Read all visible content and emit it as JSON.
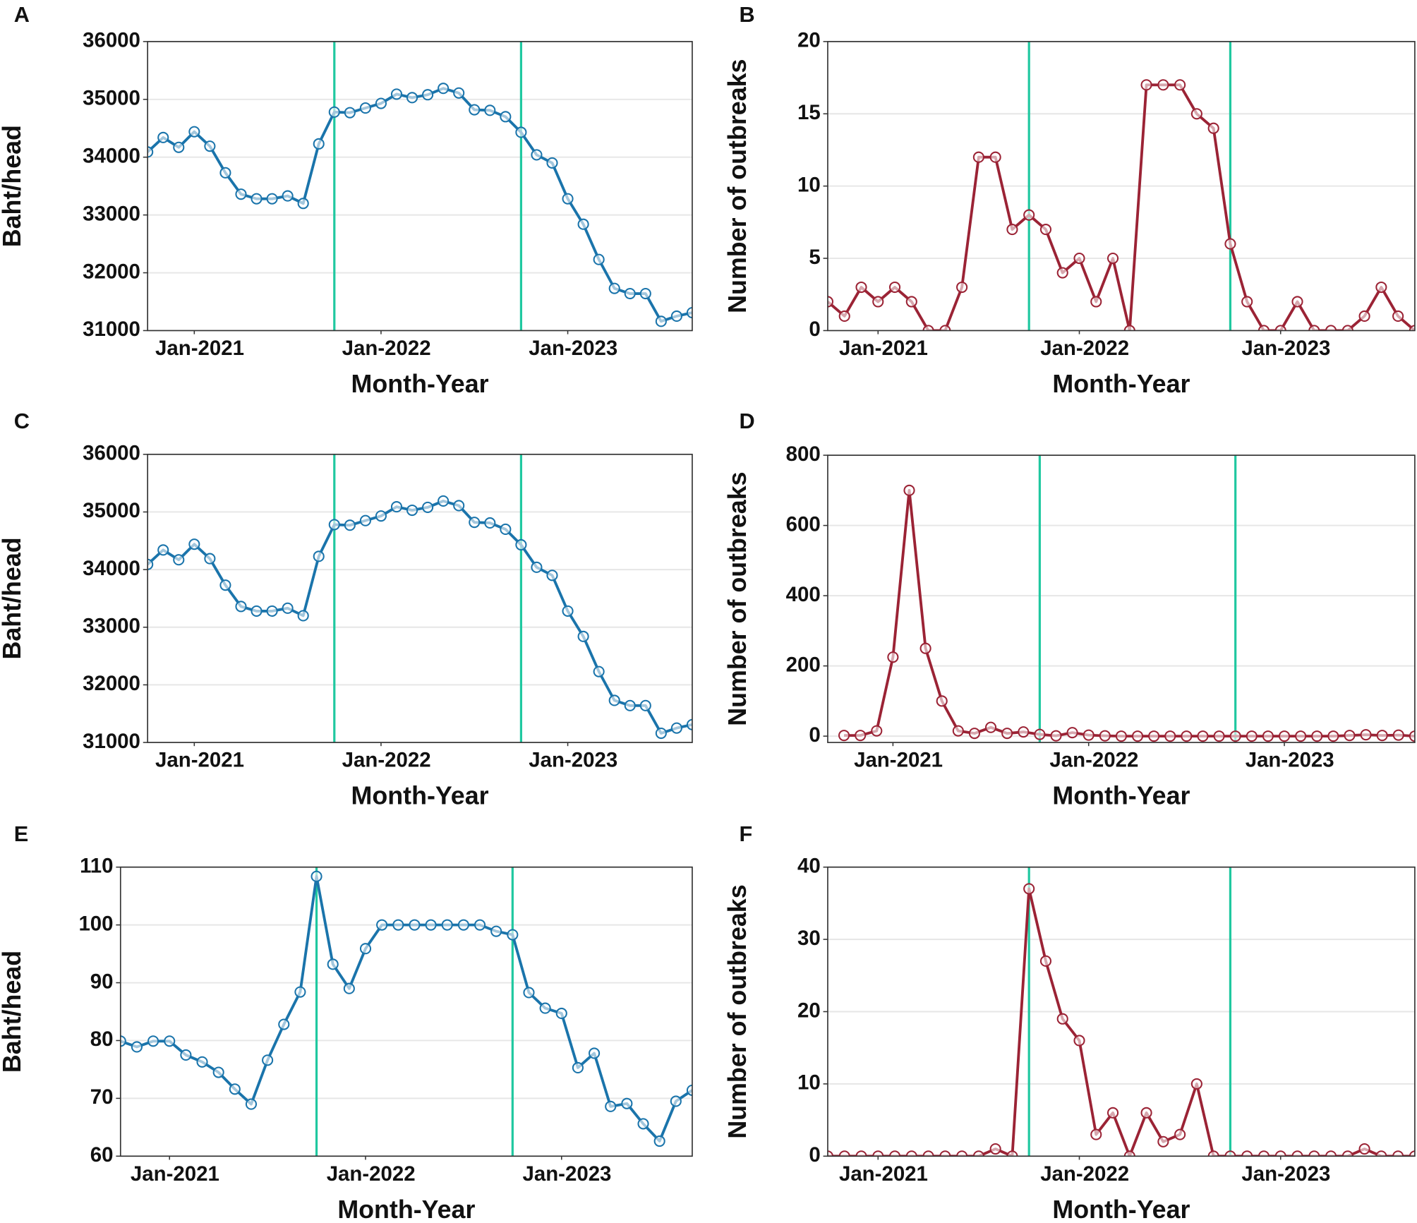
{
  "chart_data": [
    {
      "type": "line",
      "panel_label": "A",
      "xlabel": "Month-Year",
      "ylabel": "Baht/head",
      "x": [
        "2020-10",
        "2020-11",
        "2020-12",
        "2021-01",
        "2021-02",
        "2021-03",
        "2021-04",
        "2021-05",
        "2021-06",
        "2021-07",
        "2021-08",
        "2021-09",
        "2021-10",
        "2021-11",
        "2021-12",
        "2022-01",
        "2022-02",
        "2022-03",
        "2022-04",
        "2022-05",
        "2022-06",
        "2022-07",
        "2022-08",
        "2022-09",
        "2022-10",
        "2022-11",
        "2022-12",
        "2023-01",
        "2023-02",
        "2023-03",
        "2023-04",
        "2023-05",
        "2023-06",
        "2023-07",
        "2023-08",
        "2023-09"
      ],
      "values": [
        34090,
        34340,
        34170,
        34440,
        34190,
        33730,
        33360,
        33280,
        33280,
        33330,
        33200,
        34230,
        34780,
        34770,
        34850,
        34930,
        35090,
        35030,
        35080,
        35190,
        35110,
        34820,
        34810,
        34700,
        34430,
        34040,
        33900,
        33280,
        32840,
        32230,
        31730,
        31640,
        31640,
        31160,
        31250,
        31310
      ],
      "color": "#1a74ab",
      "vline_color": "#20c8a0",
      "vlines": [
        "2021-10",
        "2022-10"
      ],
      "xlim": [
        "2020-10",
        "2023-09"
      ],
      "xticks": [
        {
          "value": "2021-01",
          "label": "Jan-2021"
        },
        {
          "value": "2022-01",
          "label": "Jan-2022"
        },
        {
          "value": "2023-01",
          "label": "Jan-2023"
        }
      ],
      "ylim": [
        31000,
        36000
      ],
      "yticks": [
        31000,
        32000,
        33000,
        34000,
        35000,
        36000
      ],
      "grid": true
    },
    {
      "type": "line",
      "panel_label": "B",
      "xlabel": "Month-Year",
      "ylabel": "Number of outbreaks",
      "x": [
        "2020-10",
        "2020-11",
        "2020-12",
        "2021-01",
        "2021-02",
        "2021-03",
        "2021-04",
        "2021-05",
        "2021-06",
        "2021-07",
        "2021-08",
        "2021-09",
        "2021-10",
        "2021-11",
        "2021-12",
        "2022-01",
        "2022-02",
        "2022-03",
        "2022-04",
        "2022-05",
        "2022-06",
        "2022-07",
        "2022-08",
        "2022-09",
        "2022-10",
        "2022-11",
        "2022-12",
        "2023-01",
        "2023-02",
        "2023-03",
        "2023-04",
        "2023-05",
        "2023-06",
        "2023-07",
        "2023-08",
        "2023-09"
      ],
      "values": [
        2,
        1,
        3,
        2,
        3,
        2,
        0,
        0,
        3,
        12,
        12,
        7,
        8,
        7,
        4,
        5,
        2,
        5,
        0,
        17,
        17,
        17,
        15,
        14,
        6,
        2,
        0,
        0,
        2,
        0,
        0,
        0,
        1,
        3,
        1,
        0
      ],
      "color": "#9b2335",
      "vline_color": "#20c8a0",
      "vlines": [
        "2021-10",
        "2022-10"
      ],
      "xlim": [
        "2020-10",
        "2023-09"
      ],
      "xticks": [
        {
          "value": "2021-01",
          "label": "Jan-2021"
        },
        {
          "value": "2022-01",
          "label": "Jan-2022"
        },
        {
          "value": "2023-01",
          "label": "Jan-2023"
        }
      ],
      "ylim": [
        0,
        20
      ],
      "yticks": [
        0,
        5,
        10,
        15,
        20
      ],
      "grid": true
    },
    {
      "type": "line",
      "panel_label": "C",
      "xlabel": "Month-Year",
      "ylabel": "Baht/head",
      "x": [
        "2020-10",
        "2020-11",
        "2020-12",
        "2021-01",
        "2021-02",
        "2021-03",
        "2021-04",
        "2021-05",
        "2021-06",
        "2021-07",
        "2021-08",
        "2021-09",
        "2021-10",
        "2021-11",
        "2021-12",
        "2022-01",
        "2022-02",
        "2022-03",
        "2022-04",
        "2022-05",
        "2022-06",
        "2022-07",
        "2022-08",
        "2022-09",
        "2022-10",
        "2022-11",
        "2022-12",
        "2023-01",
        "2023-02",
        "2023-03",
        "2023-04",
        "2023-05",
        "2023-06",
        "2023-07",
        "2023-08",
        "2023-09"
      ],
      "values": [
        34090,
        34340,
        34170,
        34440,
        34190,
        33730,
        33360,
        33280,
        33280,
        33330,
        33200,
        34230,
        34780,
        34770,
        34850,
        34930,
        35090,
        35030,
        35080,
        35190,
        35110,
        34820,
        34810,
        34700,
        34430,
        34040,
        33900,
        33280,
        32840,
        32230,
        31730,
        31640,
        31640,
        31160,
        31250,
        31310
      ],
      "color": "#1a74ab",
      "vline_color": "#20c8a0",
      "vlines": [
        "2021-10",
        "2022-10"
      ],
      "xlim": [
        "2020-10",
        "2023-09"
      ],
      "xticks": [
        {
          "value": "2021-01",
          "label": "Jan-2021"
        },
        {
          "value": "2022-01",
          "label": "Jan-2022"
        },
        {
          "value": "2023-01",
          "label": "Jan-2023"
        }
      ],
      "ylim": [
        31000,
        36000
      ],
      "yticks": [
        31000,
        32000,
        33000,
        34000,
        35000,
        36000
      ],
      "grid": true
    },
    {
      "type": "line",
      "panel_label": "D",
      "xlabel": "Month-Year",
      "ylabel": "Number of outbreaks",
      "x": [
        "2020-10",
        "2020-11",
        "2020-12",
        "2021-01",
        "2021-02",
        "2021-03",
        "2021-04",
        "2021-05",
        "2021-06",
        "2021-07",
        "2021-08",
        "2021-09",
        "2021-10",
        "2021-11",
        "2021-12",
        "2022-01",
        "2022-02",
        "2022-03",
        "2022-04",
        "2022-05",
        "2022-06",
        "2022-07",
        "2022-08",
        "2022-09",
        "2022-10",
        "2022-11",
        "2022-12",
        "2023-01",
        "2023-02",
        "2023-03",
        "2023-04",
        "2023-05",
        "2023-06",
        "2023-07",
        "2023-08",
        "2023-09"
      ],
      "values": [
        2,
        2,
        15,
        225,
        700,
        250,
        100,
        15,
        8,
        25,
        8,
        12,
        5,
        1,
        10,
        3,
        1,
        0,
        0,
        0,
        0,
        0,
        0,
        0,
        0,
        0,
        0,
        0,
        0,
        0,
        0,
        2,
        4,
        2,
        3,
        0
      ],
      "color": "#9b2335",
      "vline_color": "#20c8a0",
      "vlines": [
        "2021-10",
        "2022-10"
      ],
      "xlim": [
        "2020-09",
        "2023-09"
      ],
      "xticks": [
        {
          "value": "2021-01",
          "label": "Jan-2021"
        },
        {
          "value": "2022-01",
          "label": "Jan-2022"
        },
        {
          "value": "2023-01",
          "label": "Jan-2023"
        }
      ],
      "ylim": [
        -18,
        800
      ],
      "yticks": [
        0,
        200,
        400,
        600,
        800
      ],
      "grid": true
    },
    {
      "type": "line",
      "panel_label": "E",
      "xlabel": "Month-Year",
      "ylabel": "Baht/head",
      "x": [
        "2020-10",
        "2020-11",
        "2020-12",
        "2021-01",
        "2021-02",
        "2021-03",
        "2021-04",
        "2021-05",
        "2021-06",
        "2021-07",
        "2021-08",
        "2021-09",
        "2021-10",
        "2021-11",
        "2021-12",
        "2022-01",
        "2022-02",
        "2022-03",
        "2022-04",
        "2022-05",
        "2022-06",
        "2022-07",
        "2022-08",
        "2022-09",
        "2022-10",
        "2022-11",
        "2022-12",
        "2023-01",
        "2023-02",
        "2023-03",
        "2023-04",
        "2023-05",
        "2023-06",
        "2023-07",
        "2023-08",
        "2023-09"
      ],
      "values": [
        79.9,
        78.9,
        79.9,
        79.9,
        77.5,
        76.3,
        74.5,
        71.6,
        69,
        76.6,
        82.8,
        88.4,
        108.4,
        93.2,
        89,
        95.9,
        100,
        100,
        100,
        100,
        100,
        100,
        100,
        98.9,
        98.3,
        88.3,
        85.6,
        84.7,
        75.3,
        77.8,
        68.6,
        69.1,
        65.6,
        62.6,
        69.5,
        71.4
      ],
      "color": "#1a74ab",
      "vline_color": "#20c8a0",
      "vlines": [
        "2021-10",
        "2022-10"
      ],
      "xlim": [
        "2020-10",
        "2023-09"
      ],
      "xticks": [
        {
          "value": "2021-01",
          "label": "Jan-2021"
        },
        {
          "value": "2022-01",
          "label": "Jan-2022"
        },
        {
          "value": "2023-01",
          "label": "Jan-2023"
        }
      ],
      "ylim": [
        60,
        110
      ],
      "yticks": [
        60,
        70,
        80,
        90,
        100,
        110
      ],
      "grid": true
    },
    {
      "type": "line",
      "panel_label": "F",
      "xlabel": "Month-Year",
      "ylabel": "Number of outbreaks",
      "x": [
        "2020-10",
        "2020-11",
        "2020-12",
        "2021-01",
        "2021-02",
        "2021-03",
        "2021-04",
        "2021-05",
        "2021-06",
        "2021-07",
        "2021-08",
        "2021-09",
        "2021-10",
        "2021-11",
        "2021-12",
        "2022-01",
        "2022-02",
        "2022-03",
        "2022-04",
        "2022-05",
        "2022-06",
        "2022-07",
        "2022-08",
        "2022-09",
        "2022-10",
        "2022-11",
        "2022-12",
        "2023-01",
        "2023-02",
        "2023-03",
        "2023-04",
        "2023-05",
        "2023-06",
        "2023-07",
        "2023-08",
        "2023-09"
      ],
      "values": [
        0,
        0,
        0,
        0,
        0,
        0,
        0,
        0,
        0,
        0,
        1,
        0,
        37,
        27,
        19,
        16,
        3,
        6,
        0,
        6,
        2,
        3,
        10,
        0,
        0,
        0,
        0,
        0,
        0,
        0,
        0,
        0,
        1,
        0,
        0,
        0
      ],
      "color": "#9b2335",
      "vline_color": "#20c8a0",
      "vlines": [
        "2021-10",
        "2022-10"
      ],
      "xlim": [
        "2020-10",
        "2023-09"
      ],
      "xticks": [
        {
          "value": "2021-01",
          "label": "Jan-2021"
        },
        {
          "value": "2022-01",
          "label": "Jan-2022"
        },
        {
          "value": "2023-01",
          "label": "Jan-2023"
        }
      ],
      "ylim": [
        0,
        40
      ],
      "yticks": [
        0,
        10,
        20,
        30,
        40
      ],
      "grid": true
    }
  ]
}
